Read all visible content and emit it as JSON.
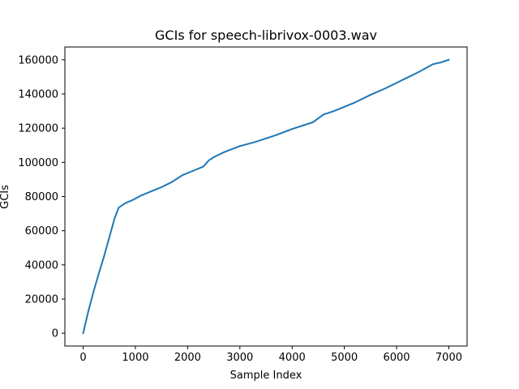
{
  "chart_data": {
    "type": "line",
    "title": "GCIs for speech-librivox-0003.wav",
    "xlabel": "Sample Index",
    "ylabel": "GCIs",
    "xlim": [
      -350,
      7350
    ],
    "ylim": [
      -7500,
      167500
    ],
    "xticks": [
      0,
      1000,
      2000,
      3000,
      4000,
      5000,
      6000,
      7000
    ],
    "yticks": [
      0,
      20000,
      40000,
      60000,
      80000,
      100000,
      120000,
      140000,
      160000
    ],
    "grid": false,
    "legend": "none",
    "series": [
      {
        "color": "#1f77b4",
        "x": [
          0,
          100,
          200,
          300,
          400,
          500,
          600,
          680,
          800,
          950,
          1100,
          1300,
          1500,
          1700,
          1900,
          2100,
          2300,
          2400,
          2500,
          2700,
          3000,
          3300,
          3500,
          3700,
          4000,
          4200,
          4400,
          4600,
          4800,
          5000,
          5200,
          5500,
          5800,
          6000,
          6200,
          6400,
          6550,
          6700,
          6850,
          7000
        ],
        "y": [
          0,
          13000,
          24500,
          35000,
          45000,
          56000,
          67000,
          73500,
          76000,
          78000,
          80500,
          83000,
          85500,
          88500,
          92500,
          95000,
          97500,
          101000,
          103000,
          106000,
          109500,
          112000,
          114000,
          116000,
          119500,
          121500,
          123500,
          128000,
          130000,
          132500,
          135000,
          139500,
          143500,
          146500,
          149500,
          152500,
          155000,
          157500,
          158500,
          160000
        ]
      }
    ]
  }
}
